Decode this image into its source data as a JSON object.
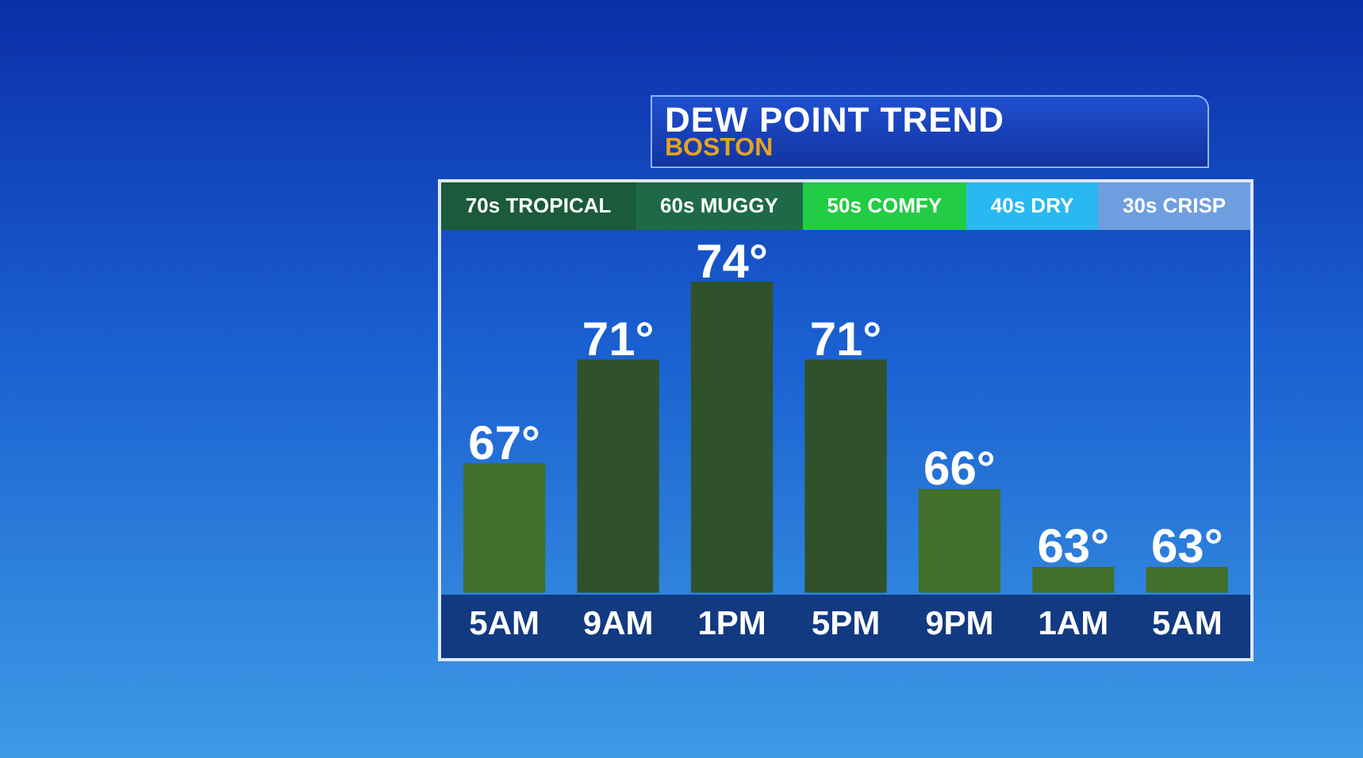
{
  "chart_data": {
    "type": "bar",
    "title": "DEW POINT TREND",
    "subtitle": "BOSTON",
    "annotations": [
      "70s TROPICAL",
      "60s MUGGY",
      "50s COMFY",
      "40s DRY",
      "30s CRISP"
    ],
    "categories": [
      "5AM",
      "9AM",
      "1PM",
      "5PM",
      "9PM",
      "1AM",
      "5AM"
    ],
    "values": [
      67,
      71,
      74,
      71,
      66,
      63,
      63
    ],
    "value_labels": [
      "67°",
      "71°",
      "74°",
      "71°",
      "66°",
      "63°",
      "63°"
    ],
    "colors": [
      "#41702b",
      "#30522a",
      "#30522a",
      "#30522a",
      "#41702b",
      "#41702b",
      "#41702b"
    ],
    "tick_labels": "x",
    "grid": false,
    "legend": false
  }
}
